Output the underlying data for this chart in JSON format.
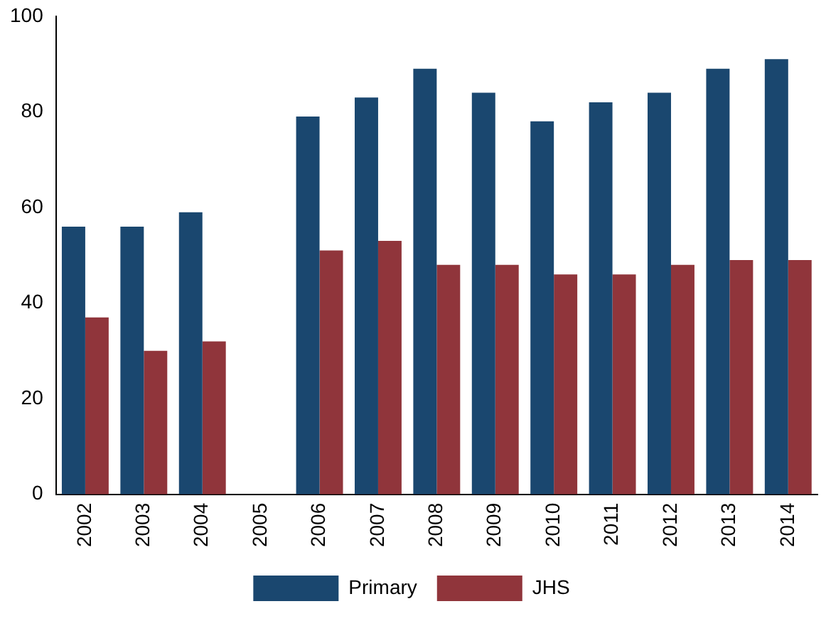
{
  "chart_data": {
    "type": "bar",
    "categories": [
      "2002",
      "2003",
      "2004",
      "2005",
      "2006",
      "2007",
      "2008",
      "2009",
      "2010",
      "2011",
      "2012",
      "2013",
      "2014"
    ],
    "series": [
      {
        "name": "Primary",
        "color": "#1a476f",
        "values": [
          56,
          56,
          59,
          null,
          79,
          83,
          89,
          84,
          78,
          82,
          84,
          89,
          91
        ]
      },
      {
        "name": "JHS",
        "color": "#90353b",
        "values": [
          37,
          30,
          32,
          null,
          51,
          53,
          48,
          48,
          46,
          46,
          48,
          49,
          49
        ]
      }
    ],
    "ylim": [
      0,
      100
    ],
    "yticks": [
      0,
      20,
      40,
      60,
      80,
      100
    ],
    "grid": false,
    "legend": "bottom"
  }
}
